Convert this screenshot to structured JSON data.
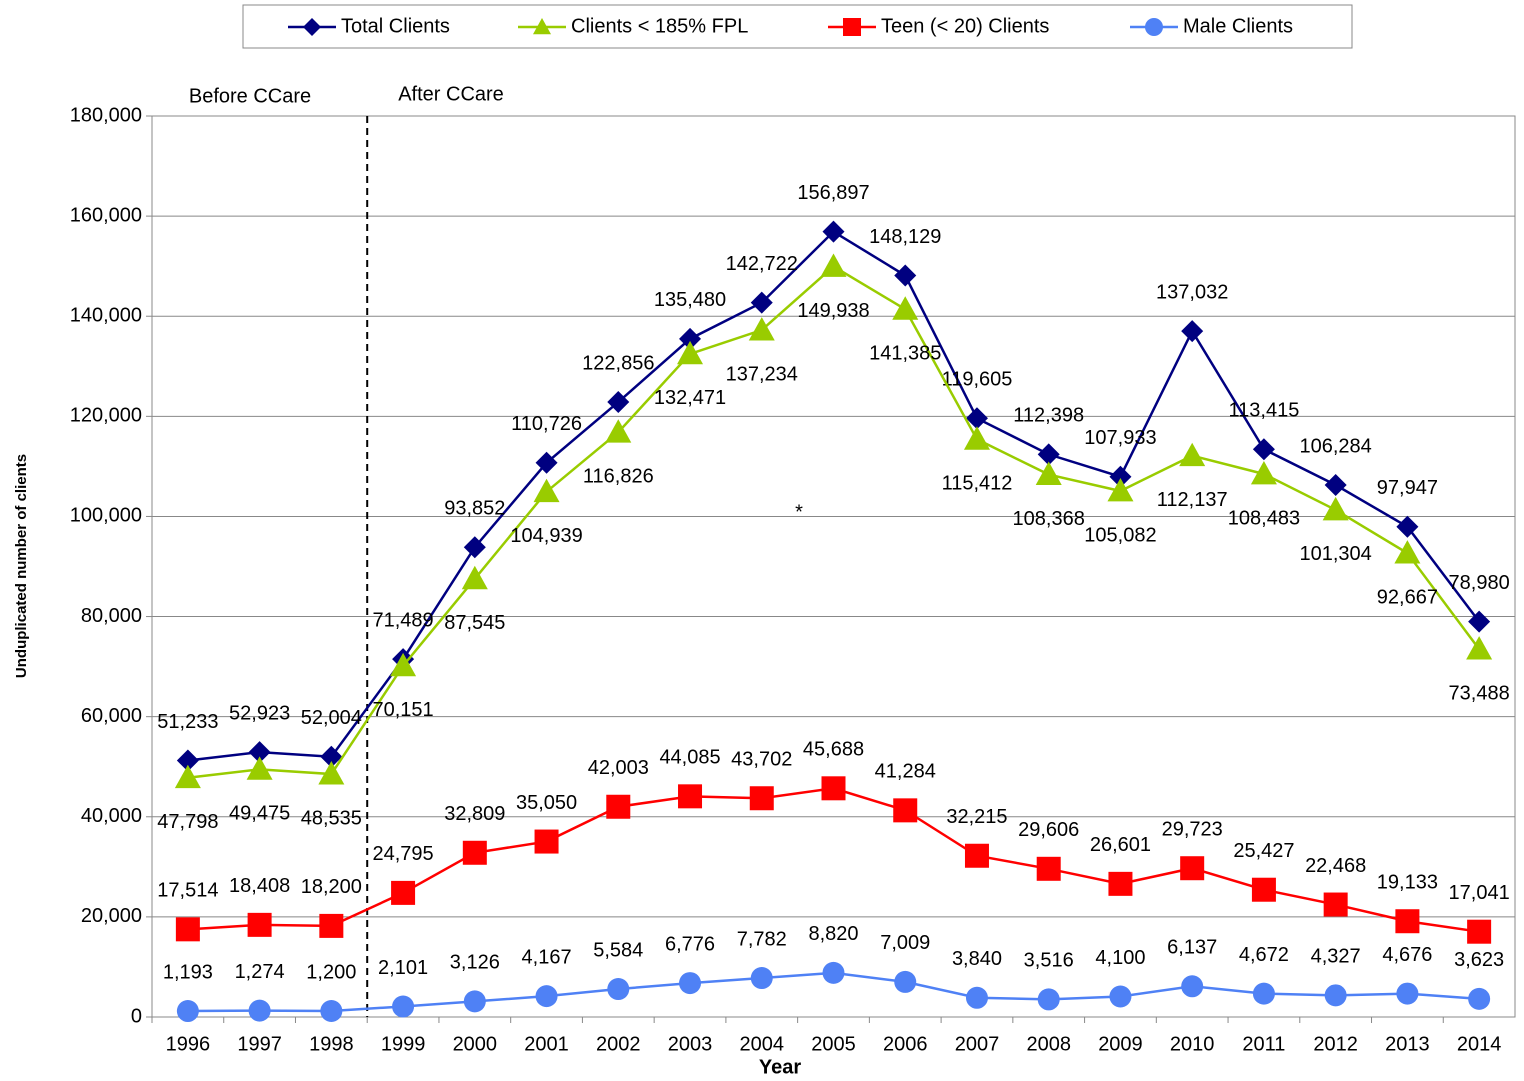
{
  "chart_data": {
    "type": "line",
    "x_label": "Year",
    "y_label": "Unduplicated number of clients",
    "annotations": [
      "Before CCare",
      "After CCare",
      "*"
    ],
    "categories": [
      "1996",
      "1997",
      "1998",
      "1999",
      "2000",
      "2001",
      "2002",
      "2003",
      "2004",
      "2005",
      "2006",
      "2007",
      "2008",
      "2009",
      "2010",
      "2011",
      "2012",
      "2013",
      "2014"
    ],
    "ylim": [
      0,
      180000
    ],
    "yticks": [
      {
        "value": 0,
        "label": "0"
      },
      {
        "value": 20000,
        "label": "20,000"
      },
      {
        "value": 40000,
        "label": "40,000"
      },
      {
        "value": 60000,
        "label": "60,000"
      },
      {
        "value": 80000,
        "label": "80,000"
      },
      {
        "value": 100000,
        "label": "100,000"
      },
      {
        "value": 120000,
        "label": "120,000"
      },
      {
        "value": 140000,
        "label": "140,000"
      },
      {
        "value": 160000,
        "label": "160,000"
      },
      {
        "value": 180000,
        "label": "180,000"
      }
    ],
    "grid": true,
    "legend": "top",
    "series": [
      {
        "name": "Total Clients",
        "color": "#000080",
        "marker": "diamond",
        "values": [
          51233,
          52923,
          52004,
          71489,
          93852,
          110726,
          122856,
          135480,
          142722,
          156897,
          148129,
          119605,
          112398,
          107933,
          137032,
          113415,
          106284,
          97947,
          78980
        ],
        "value_labels": [
          "51,233",
          "52,923",
          "52,004",
          "71,489",
          "93,852",
          "110,726",
          "122,856",
          "135,480",
          "142,722",
          "156,897",
          "148,129",
          "119,605",
          "112,398",
          "107,933",
          "137,032",
          "113,415",
          "106,284",
          "97,947",
          "78,980"
        ]
      },
      {
        "name": "Clients < 185% FPL",
        "color": "#99cc00",
        "marker": "triangle",
        "values": [
          47798,
          49475,
          48535,
          70151,
          87545,
          104939,
          116826,
          132471,
          137234,
          149938,
          141385,
          115412,
          108368,
          105082,
          112137,
          108483,
          101304,
          92667,
          73488
        ],
        "value_labels": [
          "47,798",
          "49,475",
          "48,535",
          "70,151",
          "87,545",
          "104,939",
          "116,826",
          "132,471",
          "137,234",
          "149,938",
          "141,385",
          "115,412",
          "108,368",
          "105,082",
          "112,137",
          "108,483",
          "101,304",
          "92,667",
          "73,488"
        ]
      },
      {
        "name": "Teen (< 20) Clients",
        "color": "#ff0000",
        "marker": "square",
        "values": [
          17514,
          18408,
          18200,
          24795,
          32809,
          35050,
          42003,
          44085,
          43702,
          45688,
          41284,
          32215,
          29606,
          26601,
          29723,
          25427,
          22468,
          19133,
          17041
        ],
        "value_labels": [
          "17,514",
          "18,408",
          "18,200",
          "24,795",
          "32,809",
          "35,050",
          "42,003",
          "44,085",
          "43,702",
          "45,688",
          "41,284",
          "32,215",
          "29,606",
          "26,601",
          "29,723",
          "25,427",
          "22,468",
          "19,133",
          "17,041"
        ]
      },
      {
        "name": "Male Clients",
        "color": "#4f81f5",
        "marker": "circle",
        "values": [
          1193,
          1274,
          1200,
          2101,
          3126,
          4167,
          5584,
          6776,
          7782,
          8820,
          7009,
          3840,
          3516,
          4100,
          6137,
          4672,
          4327,
          4676,
          3623
        ],
        "value_labels": [
          "1,193",
          "1,274",
          "1,200",
          "2,101",
          "3,126",
          "4,167",
          "5,584",
          "6,776",
          "7,782",
          "8,820",
          "7,009",
          "3,840",
          "3,516",
          "4,100",
          "6,137",
          "4,672",
          "4,327",
          "4,676",
          "3,623"
        ]
      }
    ]
  }
}
